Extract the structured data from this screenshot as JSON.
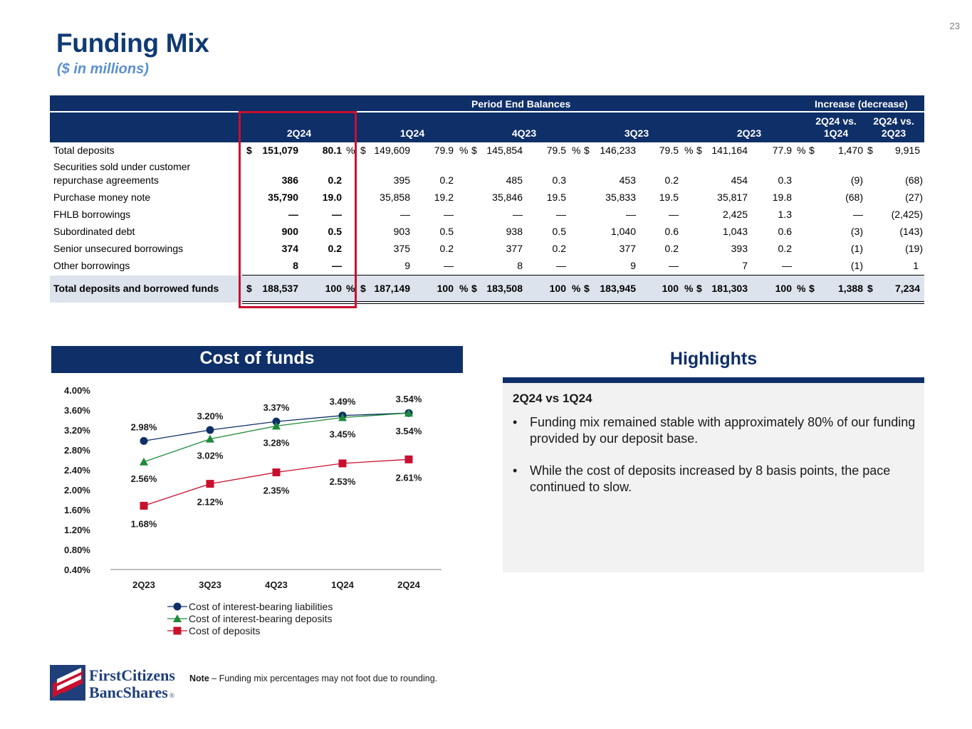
{
  "page_number": "23",
  "title": "Funding Mix",
  "subtitle": "($ in millions)",
  "table": {
    "group_headers": {
      "period_end": "Period End Balances",
      "change": "Increase (decrease)"
    },
    "col_2q24": "2Q24",
    "col_1q24": "1Q24",
    "col_4q23": "4Q23",
    "col_3q23": "3Q23",
    "col_2q23": "2Q23",
    "col_vs_1q24_a": "2Q24 vs.",
    "col_vs_1q24_b": "1Q24",
    "col_vs_2q23_a": "2Q24 vs.",
    "col_vs_2q23_b": "2Q23",
    "rows": [
      {
        "label": "Total deposits",
        "cur1": "$",
        "v2q24": "151,079",
        "p2q24": "80.1",
        "pct1": "%",
        "cur2": "$",
        "v1q24": "149,609",
        "p1q24": "79.9",
        "pct2": "%",
        "cur3": "$",
        "v4q23": "145,854",
        "p4q23": "79.5",
        "pct3": "%",
        "cur4": "$",
        "v3q23": "146,233",
        "p3q23": "79.5",
        "pct4": "%",
        "cur5": "$",
        "v2q23": "141,164",
        "p2q23": "77.9",
        "pct5": "%",
        "cur6": "$",
        "d1": "1,470",
        "cur7": "$",
        "d2": "9,915"
      },
      {
        "label": "Securities sold under customer",
        "label2": "repurchase agreements",
        "v2q24": "386",
        "p2q24": "0.2",
        "v1q24": "395",
        "p1q24": "0.2",
        "v4q23": "485",
        "p4q23": "0.3",
        "v3q23": "453",
        "p3q23": "0.2",
        "v2q23": "454",
        "p2q23": "0.3",
        "d1": "(9)",
        "d2": "(68)"
      },
      {
        "label": "Purchase money note",
        "v2q24": "35,790",
        "p2q24": "19.0",
        "v1q24": "35,858",
        "p1q24": "19.2",
        "v4q23": "35,846",
        "p4q23": "19.5",
        "v3q23": "35,833",
        "p3q23": "19.5",
        "v2q23": "35,817",
        "p2q23": "19.8",
        "d1": "(68)",
        "d2": "(27)"
      },
      {
        "label": "FHLB borrowings",
        "v2q24": "—",
        "p2q24": "—",
        "v1q24": "—",
        "p1q24": "—",
        "v4q23": "—",
        "p4q23": "—",
        "v3q23": "—",
        "p3q23": "—",
        "v2q23": "2,425",
        "p2q23": "1.3",
        "d1": "—",
        "d2": "(2,425)"
      },
      {
        "label": "Subordinated debt",
        "v2q24": "900",
        "p2q24": "0.5",
        "v1q24": "903",
        "p1q24": "0.5",
        "v4q23": "938",
        "p4q23": "0.5",
        "v3q23": "1,040",
        "p3q23": "0.6",
        "v2q23": "1,043",
        "p2q23": "0.6",
        "d1": "(3)",
        "d2": "(143)"
      },
      {
        "label": "Senior unsecured borrowings",
        "v2q24": "374",
        "p2q24": "0.2",
        "v1q24": "375",
        "p1q24": "0.2",
        "v4q23": "377",
        "p4q23": "0.2",
        "v3q23": "377",
        "p3q23": "0.2",
        "v2q23": "393",
        "p2q23": "0.2",
        "d1": "(1)",
        "d2": "(19)"
      },
      {
        "label": "Other borrowings",
        "v2q24": "8",
        "p2q24": "—",
        "v1q24": "9",
        "p1q24": "—",
        "v4q23": "8",
        "p4q23": "—",
        "v3q23": "9",
        "p3q23": "—",
        "v2q23": "7",
        "p2q23": "—",
        "d1": "(1)",
        "d2": "1"
      },
      {
        "label": "Total deposits and borrowed funds",
        "cur1": "$",
        "v2q24": "188,537",
        "p2q24": "100",
        "pct1": "%",
        "cur2": "$",
        "v1q24": "187,149",
        "p1q24": "100",
        "pct2": "%",
        "cur3": "$",
        "v4q23": "183,508",
        "p4q23": "100",
        "pct3": "%",
        "cur4": "$",
        "v3q23": "183,945",
        "p3q23": "100",
        "pct4": "%",
        "cur5": "$",
        "v2q23": "181,303",
        "p2q23": "100",
        "pct5": "%",
        "cur6": "$",
        "d1": "1,388",
        "cur7": "$",
        "d2": "7,234"
      }
    ]
  },
  "chart": {
    "header": "Cost of funds",
    "y_ticks": [
      "4.00%",
      "3.60%",
      "3.20%",
      "2.80%",
      "2.40%",
      "2.00%",
      "1.60%",
      "1.20%",
      "0.80%",
      "0.40%"
    ],
    "legend_label_liab": "Cost of interest-bearing liabilities",
    "legend_label_ibd": "Cost of interest-bearing deposits",
    "legend_label_dep": "Cost of deposits",
    "colors": {
      "liab": "#0f2f68",
      "ibd": "#1f8a3c",
      "dep": "#c8102e"
    }
  },
  "chart_data": {
    "type": "line",
    "categories": [
      "2Q23",
      "3Q23",
      "4Q23",
      "1Q24",
      "2Q24"
    ],
    "ylim": [
      0.4,
      4.0
    ],
    "series": [
      {
        "name": "Cost of interest-bearing liabilities",
        "values": [
          2.98,
          3.2,
          3.37,
          3.49,
          3.54
        ],
        "labels": [
          "2.98%",
          "3.20%",
          "3.37%",
          "3.49%",
          "3.54%"
        ]
      },
      {
        "name": "Cost of interest-bearing deposits",
        "values": [
          2.56,
          3.02,
          3.28,
          3.45,
          3.54
        ],
        "labels": [
          "2.56%",
          "3.02%",
          "3.28%",
          "3.45%",
          "3.54%"
        ]
      },
      {
        "name": "Cost of deposits",
        "values": [
          1.68,
          2.12,
          2.35,
          2.53,
          2.61
        ],
        "labels": [
          "1.68%",
          "2.12%",
          "2.35%",
          "2.53%",
          "2.61%"
        ]
      }
    ]
  },
  "highlights": {
    "title": "Highlights",
    "subheading": "2Q24 vs 1Q24",
    "bullet_char": "•",
    "bullets": [
      "Funding mix remained stable with approximately 80% of our funding provided by our deposit base.",
      "While the cost of deposits increased by 8 basis points, the pace continued to slow."
    ]
  },
  "footer": {
    "logo_line1": "FirstCitizens",
    "logo_line2": "BancShares",
    "logo_mark": "®",
    "note_bold": "Note",
    "note_text": " – Funding mix percentages may not foot due to rounding."
  }
}
